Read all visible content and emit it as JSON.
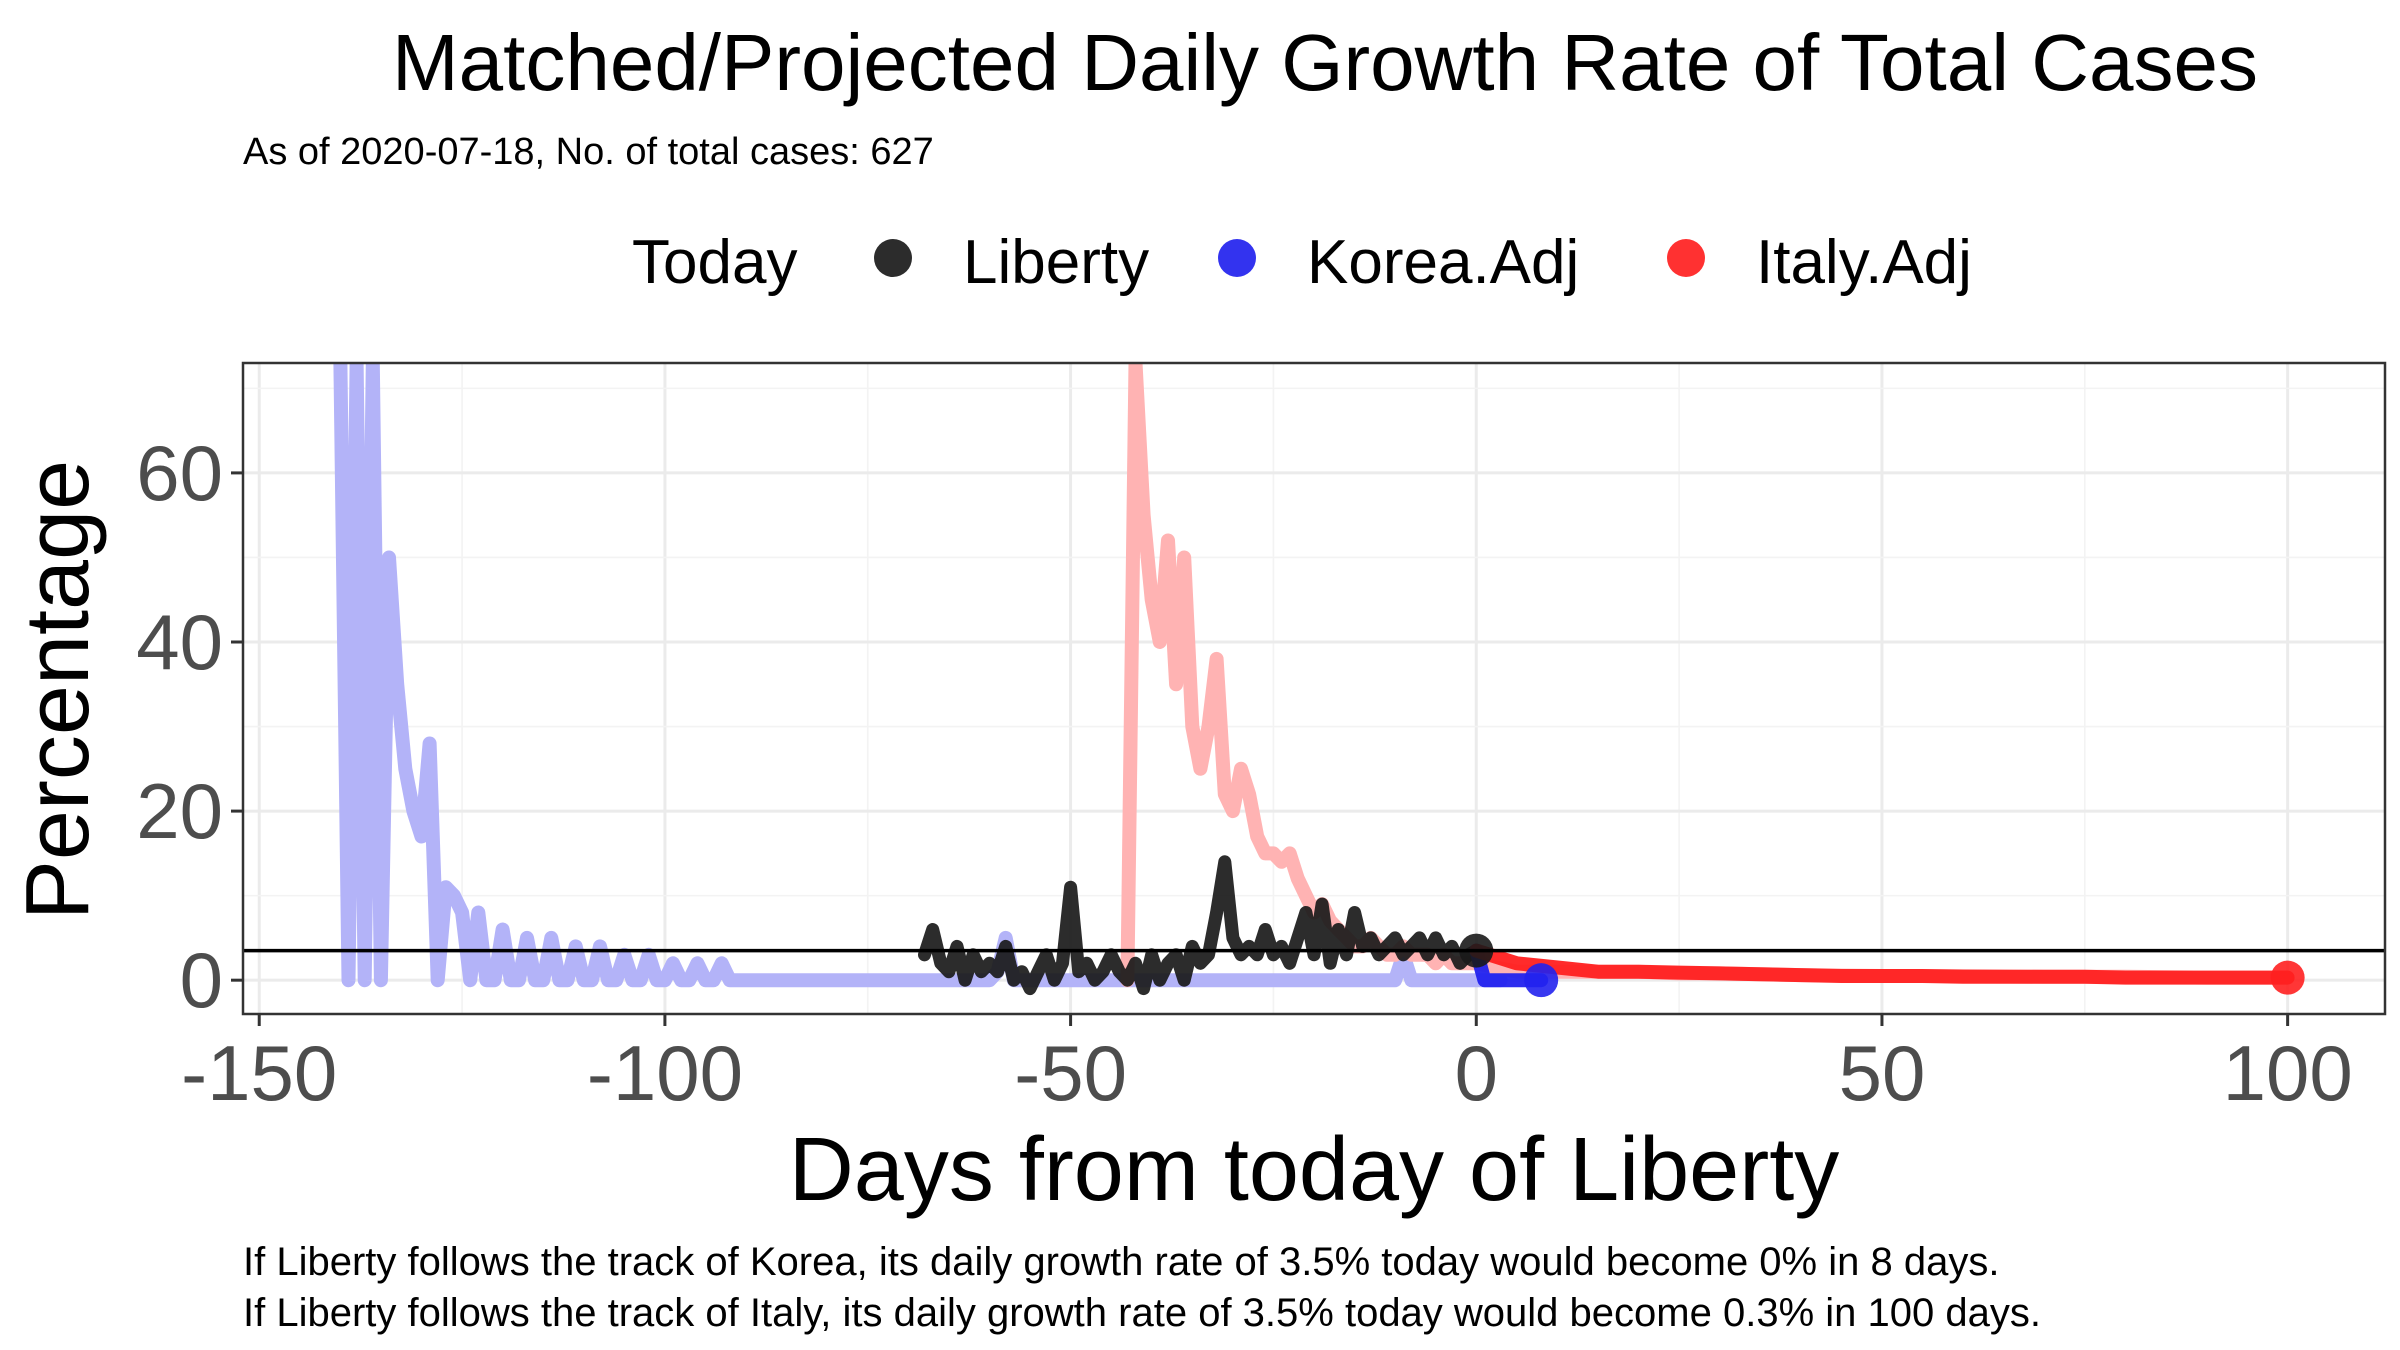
{
  "chart_data": {
    "type": "line",
    "title": "Matched/Projected Daily Growth Rate of Total Cases",
    "subtitle": "As of 2020-07-18, No. of total cases: 627",
    "xlabel": "Days from today of Liberty",
    "ylabel": "Percentage",
    "xlim": [
      -152,
      112
    ],
    "ylim": [
      -4,
      73
    ],
    "x_ticks": [
      -150,
      -100,
      -50,
      0,
      50,
      100
    ],
    "x_tick_labels": [
      "-150",
      "-100",
      "-50",
      "0",
      "50",
      "100"
    ],
    "y_ticks": [
      0,
      20,
      40,
      60
    ],
    "y_tick_labels": [
      "0",
      "20",
      "40",
      "60"
    ],
    "grid": true,
    "legend": {
      "position": "top",
      "title": "Today",
      "entries": [
        {
          "label": "Liberty",
          "color": "#1a1a1a"
        },
        {
          "label": "Korea.Adj",
          "color": "#2222ee"
        },
        {
          "label": "Italy.Adj",
          "color": "#ff2020"
        }
      ]
    },
    "reference_line_y": 3.5,
    "series": [
      {
        "name": "Korea.Adj",
        "role": "matched",
        "color": "#b3b3f8",
        "x": [
          -140,
          -139,
          -138,
          -137,
          -136,
          -135,
          -134,
          -133,
          -132,
          -131,
          -130,
          -129,
          -128,
          -127,
          -126,
          -125,
          -124,
          -123,
          -122,
          -121,
          -120,
          -119,
          -118,
          -117,
          -116,
          -115,
          -114,
          -113,
          -112,
          -111,
          -110,
          -109,
          -108,
          -107,
          -106,
          -105,
          -104,
          -103,
          -102,
          -101,
          -100,
          -99,
          -98,
          -97,
          -96,
          -95,
          -94,
          -93,
          -92,
          -91,
          -90,
          -85,
          -80,
          -75,
          -70,
          -65,
          -60,
          -59,
          -58,
          -57,
          -56,
          -55,
          -50,
          -45,
          -40,
          -35,
          -30,
          -25,
          -20,
          -15,
          -10,
          -9,
          -8,
          -5,
          0,
          3
        ],
        "values": [
          73,
          0,
          73,
          0,
          73,
          0,
          50,
          35,
          25,
          20,
          17,
          28,
          0,
          11,
          10,
          8,
          0,
          8,
          0,
          0,
          6,
          0,
          0,
          5,
          0,
          0,
          5,
          0,
          0,
          4,
          0,
          0,
          4,
          0,
          0,
          3,
          0,
          0,
          3,
          0,
          0,
          2,
          0,
          0,
          2,
          0,
          0,
          2,
          0,
          0,
          0,
          0,
          0,
          0,
          0,
          0,
          0,
          1,
          5,
          0,
          0,
          0,
          0,
          0,
          0,
          0,
          0,
          0,
          0,
          0,
          0,
          3,
          0,
          0,
          0,
          0
        ]
      },
      {
        "name": "Italy.Adj",
        "role": "matched",
        "color": "#ffb3b3",
        "x": [
          -43,
          -42,
          -41,
          -40,
          -39,
          -38,
          -37,
          -36,
          -35,
          -34,
          -33,
          -32,
          -31,
          -30,
          -29,
          -28,
          -27,
          -26,
          -25,
          -24,
          -23,
          -22,
          -21,
          -20,
          -19,
          -18,
          -17,
          -16,
          -15,
          -14,
          -13,
          -12,
          -11,
          -10,
          -9,
          -8,
          -7,
          -6,
          -5,
          -4,
          -3,
          -2,
          -1,
          0,
          5,
          10,
          15,
          20,
          25,
          30,
          40,
          50,
          60,
          70,
          80,
          90,
          100
        ],
        "values": [
          0,
          73,
          55,
          45,
          40,
          52,
          35,
          50,
          30,
          25,
          30,
          38,
          22,
          20,
          25,
          22,
          17,
          15,
          15,
          14,
          15,
          12,
          10,
          8,
          9,
          7,
          6,
          5,
          4,
          4,
          5,
          4,
          3,
          3,
          4,
          3,
          3,
          3,
          2,
          3,
          2,
          2,
          2,
          2,
          1,
          1,
          1,
          1,
          0.8,
          0.8,
          0.6,
          0.5,
          0.5,
          0.4,
          0.4,
          0.3,
          0.3
        ]
      },
      {
        "name": "Liberty",
        "role": "observed",
        "color": "#1a1a1a",
        "x": [
          -68,
          -67,
          -66,
          -65,
          -64,
          -63,
          -62,
          -61,
          -60,
          -59,
          -58,
          -57,
          -56,
          -55,
          -54,
          -53,
          -52,
          -51,
          -50,
          -49,
          -48,
          -47,
          -46,
          -45,
          -44,
          -43,
          -42,
          -41,
          -40,
          -39,
          -38,
          -37,
          -36,
          -35,
          -34,
          -33,
          -32,
          -31,
          -30,
          -29,
          -28,
          -27,
          -26,
          -25,
          -24,
          -23,
          -22,
          -21,
          -20,
          -19,
          -18,
          -17,
          -16,
          -15,
          -14,
          -13,
          -12,
          -11,
          -10,
          -9,
          -8,
          -7,
          -6,
          -5,
          -4,
          -3,
          -2,
          -1,
          0
        ],
        "values": [
          3,
          6,
          2,
          1,
          4,
          0,
          3,
          1,
          2,
          1,
          4,
          0,
          1,
          -1,
          1,
          3,
          0,
          2,
          11,
          1,
          2,
          0,
          1,
          3,
          1,
          0,
          2,
          -1,
          3,
          0,
          2,
          3,
          0,
          4,
          2,
          3,
          8,
          14,
          5,
          3,
          4,
          3,
          6,
          3,
          4,
          2,
          5,
          8,
          3,
          9,
          2,
          6,
          3,
          8,
          4,
          5,
          3,
          4,
          5,
          3,
          4,
          5,
          3,
          5,
          3,
          4,
          2,
          3,
          3.5
        ]
      },
      {
        "name": "Korea.Adj",
        "role": "projected",
        "color": "#2222ee",
        "x": [
          0,
          1,
          2,
          3,
          4,
          5,
          6,
          7,
          8
        ],
        "values": [
          3.5,
          0,
          0,
          0,
          0,
          0,
          0,
          0,
          0
        ]
      },
      {
        "name": "Italy.Adj",
        "role": "projected",
        "color": "#ff2020",
        "x": [
          0,
          5,
          10,
          15,
          20,
          25,
          30,
          35,
          40,
          45,
          50,
          55,
          60,
          65,
          70,
          75,
          80,
          85,
          90,
          95,
          100
        ],
        "values": [
          3.5,
          2,
          1.5,
          1,
          1,
          0.9,
          0.8,
          0.7,
          0.6,
          0.5,
          0.5,
          0.5,
          0.4,
          0.4,
          0.4,
          0.4,
          0.3,
          0.3,
          0.3,
          0.3,
          0.3
        ]
      }
    ],
    "endpoints": [
      {
        "label": "Liberty",
        "x": 0,
        "y": 3.5,
        "color": "#1a1a1a"
      },
      {
        "label": "Korea.Adj",
        "x": 8,
        "y": 0,
        "color": "#2222ee"
      },
      {
        "label": "Italy.Adj",
        "x": 100,
        "y": 0.3,
        "color": "#ff2020"
      }
    ],
    "captions": [
      "If Liberty follows the track of Korea, its daily growth rate of 3.5% today would become 0% in 8 days.",
      "If Liberty follows the track of Italy, its daily growth rate of 3.5% today would become 0.3% in 100 days."
    ]
  }
}
